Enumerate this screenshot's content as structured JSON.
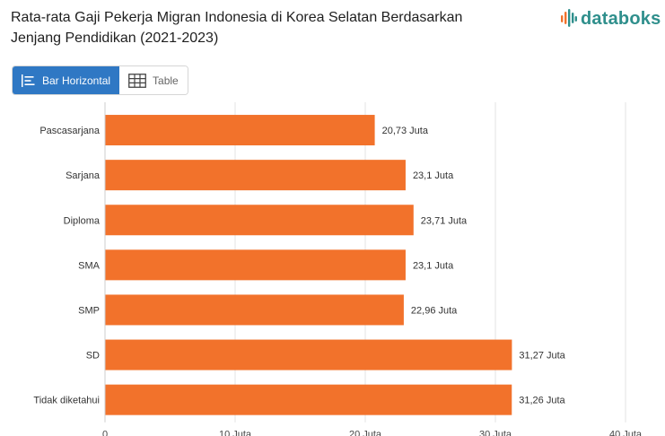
{
  "title": {
    "line1": "Rata-rata Gaji Pekerja Migran Indonesia di Korea Selatan Berdasarkan",
    "line2": "Jenjang Pendidikan (2021-2023)"
  },
  "brand": {
    "name": "databoks",
    "color": "#2f8f8c",
    "icon": "databoks-logo-icon"
  },
  "view_toggle": {
    "bar_label": "Bar Horizontal",
    "table_label": "Table",
    "active": "bar",
    "bar_icon": "bar-chart-icon",
    "table_icon": "table-grid-icon",
    "active_color": "#2f78c4"
  },
  "chart_data": {
    "type": "bar",
    "orientation": "horizontal",
    "categories": [
      "Pascasarjana",
      "Sarjana",
      "Diploma",
      "SMA",
      "SMP",
      "SD",
      "Tidak diketahui"
    ],
    "values": [
      20.73,
      23.1,
      23.71,
      23.1,
      22.96,
      31.27,
      31.26
    ],
    "value_labels": [
      "20,73 Juta",
      "23,1 Juta",
      "23,71 Juta",
      "23,1 Juta",
      "22,96 Juta",
      "31,27 Juta",
      "31,26 Juta"
    ],
    "xlim": [
      0,
      40
    ],
    "xticks": [
      0,
      10,
      20,
      30,
      40
    ],
    "xtick_labels": [
      "0",
      "10 Juta",
      "20 Juta",
      "30 Juta",
      "40 Juta"
    ],
    "bar_color": "#f2722b",
    "grid": true
  }
}
